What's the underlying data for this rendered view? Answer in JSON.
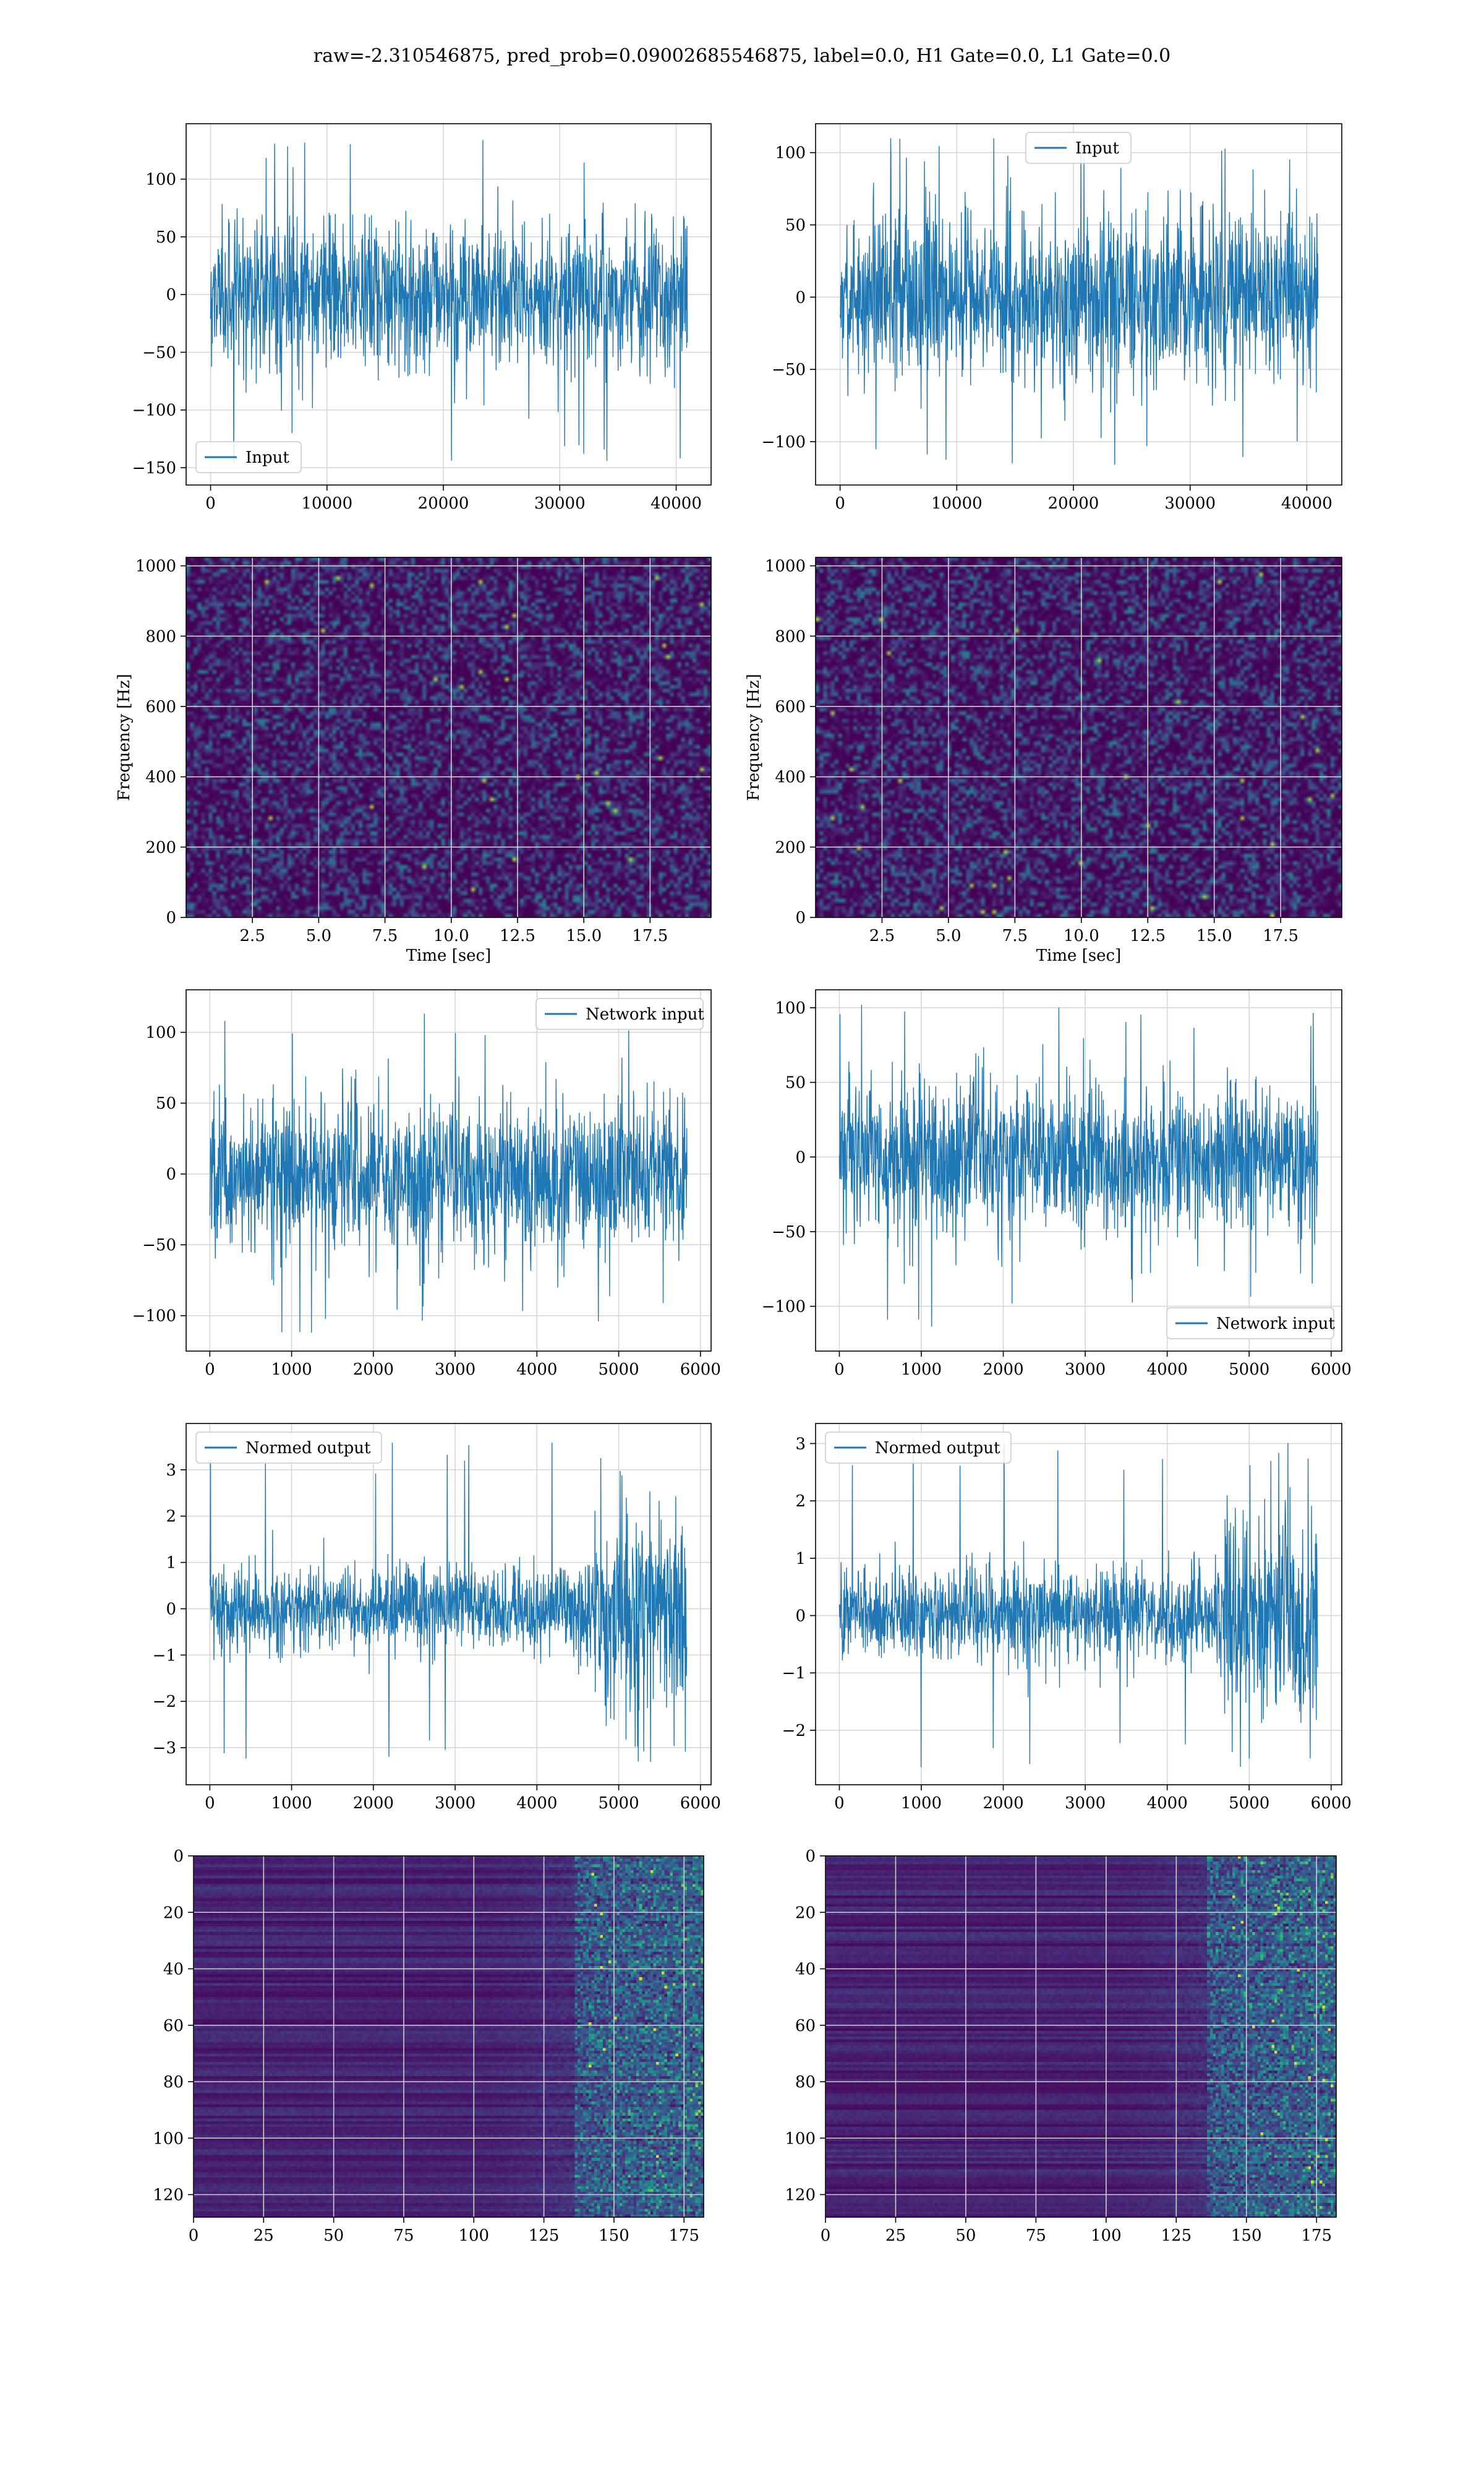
{
  "figure": {
    "title": "raw=-2.310546875, pred_prob=0.09002685546875, label=0.0, H1 Gate=0.0, L1 Gate=0.0",
    "line_color": "#1f77b4",
    "grid_color": "#d6d6d6",
    "colormap": "viridis"
  },
  "chart_data": [
    {
      "id": "input-left",
      "type": "line",
      "legend": "top-left-inside bottom-left",
      "series": [
        {
          "name": "Input",
          "n": 40960,
          "amplitude_std": 32,
          "peak_min": -150,
          "peak_max": 135
        }
      ],
      "xlim": [
        -2100,
        43000
      ],
      "ylim": [
        -165,
        148
      ],
      "xticks": [
        0,
        10000,
        20000,
        30000,
        40000
      ],
      "yticks": [
        -150,
        -100,
        -50,
        0,
        50,
        100
      ],
      "xticklabels": [
        "0",
        "10000",
        "20000",
        "30000",
        "40000"
      ],
      "yticklabels": [
        "−150",
        "−100",
        "−50",
        "0",
        "50",
        "100"
      ],
      "xlabel": "",
      "ylabel": "",
      "legend_pos": "lower left",
      "grid": true
    },
    {
      "id": "input-right",
      "type": "line",
      "series": [
        {
          "name": "Input",
          "n": 40960,
          "amplitude_std": 30,
          "peak_min": -118,
          "peak_max": 112
        }
      ],
      "xlim": [
        -2100,
        43000
      ],
      "ylim": [
        -130,
        120
      ],
      "xticks": [
        0,
        10000,
        20000,
        30000,
        40000
      ],
      "yticks": [
        -100,
        -50,
        0,
        50,
        100
      ],
      "xticklabels": [
        "0",
        "10000",
        "20000",
        "30000",
        "40000"
      ],
      "yticklabels": [
        "−100",
        "−50",
        "0",
        "50",
        "100"
      ],
      "xlabel": "",
      "ylabel": "",
      "legend_pos": "upper center",
      "grid": true
    },
    {
      "id": "spec-left",
      "type": "heatmap",
      "xlim": [
        0.0,
        19.8
      ],
      "ylim": [
        0,
        1024
      ],
      "xticks": [
        2.5,
        5.0,
        7.5,
        10.0,
        12.5,
        15.0,
        17.5
      ],
      "yticks": [
        0,
        200,
        400,
        600,
        800,
        1000
      ],
      "xticklabels": [
        "2.5",
        "5.0",
        "7.5",
        "10.0",
        "12.5",
        "15.0",
        "17.5"
      ],
      "yticklabels": [
        "0",
        "200",
        "400",
        "600",
        "800",
        "1000"
      ],
      "xlabel": "Time [sec]",
      "ylabel": "Frequency [Hz]",
      "grid": true
    },
    {
      "id": "spec-right",
      "type": "heatmap",
      "xlim": [
        0.0,
        19.8
      ],
      "ylim": [
        0,
        1024
      ],
      "xticks": [
        2.5,
        5.0,
        7.5,
        10.0,
        12.5,
        15.0,
        17.5
      ],
      "yticks": [
        0,
        200,
        400,
        600,
        800,
        1000
      ],
      "xticklabels": [
        "2.5",
        "5.0",
        "7.5",
        "10.0",
        "12.5",
        "15.0",
        "17.5"
      ],
      "yticklabels": [
        "0",
        "200",
        "400",
        "600",
        "800",
        "1000"
      ],
      "xlabel": "Time [sec]",
      "ylabel": "Frequency [Hz]",
      "grid": true
    },
    {
      "id": "netin-left",
      "type": "line",
      "series": [
        {
          "name": "Network input",
          "n": 5836,
          "amplitude_std": 28,
          "peak_min": -112,
          "peak_max": 120
        }
      ],
      "xlim": [
        -290,
        6130
      ],
      "ylim": [
        -125,
        130
      ],
      "xticks": [
        0,
        1000,
        2000,
        3000,
        4000,
        5000,
        6000
      ],
      "yticks": [
        -100,
        -50,
        0,
        50,
        100
      ],
      "xticklabels": [
        "0",
        "1000",
        "2000",
        "3000",
        "4000",
        "5000",
        "6000"
      ],
      "yticklabels": [
        "−100",
        "−50",
        "0",
        "50",
        "100"
      ],
      "xlabel": "",
      "ylabel": "",
      "legend_pos": "upper right",
      "grid": true
    },
    {
      "id": "netin-right",
      "type": "line",
      "series": [
        {
          "name": "Network input",
          "n": 5836,
          "amplitude_std": 26,
          "peak_min": -115,
          "peak_max": 106
        }
      ],
      "xlim": [
        -290,
        6130
      ],
      "ylim": [
        -130,
        112
      ],
      "xticks": [
        0,
        1000,
        2000,
        3000,
        4000,
        5000,
        6000
      ],
      "yticks": [
        -100,
        -50,
        0,
        50,
        100
      ],
      "xticklabels": [
        "0",
        "1000",
        "2000",
        "3000",
        "4000",
        "5000",
        "6000"
      ],
      "yticklabels": [
        "−100",
        "−50",
        "0",
        "50",
        "100"
      ],
      "xlabel": "",
      "ylabel": "",
      "legend_pos": "lower right",
      "grid": true
    },
    {
      "id": "normed-left",
      "type": "line",
      "series": [
        {
          "name": "Normed output",
          "n": 5836,
          "amplitude_std": 0.45,
          "burst_start": 4700,
          "burst_std": 1.05,
          "peak_min": -3.45,
          "peak_max": 3.6
        }
      ],
      "xlim": [
        -290,
        6130
      ],
      "ylim": [
        -3.8,
        4.0
      ],
      "xticks": [
        0,
        1000,
        2000,
        3000,
        4000,
        5000,
        6000
      ],
      "yticks": [
        -3,
        -2,
        -1,
        0,
        1,
        2,
        3
      ],
      "xticklabels": [
        "0",
        "1000",
        "2000",
        "3000",
        "4000",
        "5000",
        "6000"
      ],
      "yticklabels": [
        "−3",
        "−2",
        "−1",
        "0",
        "1",
        "2",
        "3"
      ],
      "xlabel": "",
      "ylabel": "",
      "legend_pos": "upper left",
      "grid": true
    },
    {
      "id": "normed-right",
      "type": "line",
      "series": [
        {
          "name": "Normed output",
          "n": 5836,
          "amplitude_std": 0.42,
          "burst_start": 4700,
          "burst_std": 0.9,
          "peak_min": -2.7,
          "peak_max": 3.1
        }
      ],
      "xlim": [
        -290,
        6130
      ],
      "ylim": [
        -2.95,
        3.35
      ],
      "xticks": [
        0,
        1000,
        2000,
        3000,
        4000,
        5000,
        6000
      ],
      "yticks": [
        -2,
        -1,
        0,
        1,
        2,
        3
      ],
      "xticklabels": [
        "0",
        "1000",
        "2000",
        "3000",
        "4000",
        "5000",
        "6000"
      ],
      "yticklabels": [
        "−2",
        "−1",
        "0",
        "1",
        "2",
        "3"
      ],
      "xlabel": "",
      "ylabel": "",
      "legend_pos": "upper left",
      "grid": true
    },
    {
      "id": "feat-left",
      "type": "heatmap",
      "rows": 128,
      "cols": 182,
      "yaxis_inverted": true,
      "xlim": [
        0,
        182
      ],
      "ylim": [
        128,
        0
      ],
      "xticks": [
        0,
        25,
        50,
        75,
        100,
        125,
        150,
        175
      ],
      "yticks": [
        0,
        20,
        40,
        60,
        80,
        100,
        120
      ],
      "xticklabels": [
        "0",
        "25",
        "50",
        "75",
        "100",
        "125",
        "150",
        "175"
      ],
      "yticklabels": [
        "0",
        "20",
        "40",
        "60",
        "80",
        "100",
        "120"
      ],
      "xlabel": "",
      "ylabel": "",
      "grid": true
    },
    {
      "id": "feat-right",
      "type": "heatmap",
      "rows": 128,
      "cols": 182,
      "yaxis_inverted": true,
      "xlim": [
        0,
        182
      ],
      "ylim": [
        128,
        0
      ],
      "xticks": [
        0,
        25,
        50,
        75,
        100,
        125,
        150,
        175
      ],
      "yticks": [
        0,
        20,
        40,
        60,
        80,
        100,
        120
      ],
      "xticklabels": [
        "0",
        "25",
        "50",
        "75",
        "100",
        "125",
        "150",
        "175"
      ],
      "yticklabels": [
        "0",
        "20",
        "40",
        "60",
        "80",
        "100",
        "120"
      ],
      "xlabel": "",
      "ylabel": "",
      "grid": true
    }
  ]
}
